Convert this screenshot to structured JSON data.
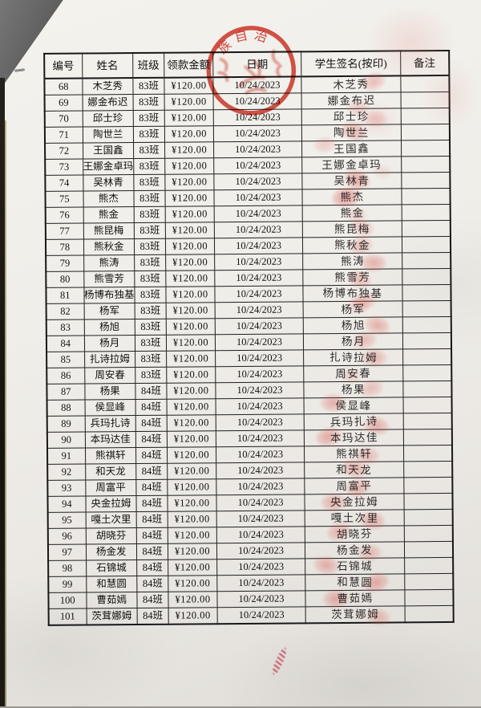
{
  "stamp": {
    "arc_text": "族自治",
    "color": "#c62b1e"
  },
  "decor": {
    "ink_streak": "red-ink-smudge-below-table"
  },
  "table": {
    "headers": [
      "编号",
      "姓名",
      "班级",
      "领款金额",
      "日期",
      "学生签名(按印)",
      "备注"
    ],
    "rows": [
      {
        "no": "68",
        "name": "木芝秀",
        "cls": "83班",
        "amt": "¥120.00",
        "date": "10/24/2023",
        "sig": "木芝秀",
        "note": "",
        "fp": [
          28,
          -4,
          0.5
        ]
      },
      {
        "no": "69",
        "name": "娜金布迟",
        "cls": "83班",
        "amt": "¥120.00",
        "date": "10/24/2023",
        "sig": "娜金布迟",
        "note": "",
        "fp": [
          8,
          8,
          0.35
        ]
      },
      {
        "no": "70",
        "name": "邱士珍",
        "cls": "83班",
        "amt": "¥120.00",
        "date": "10/24/2023",
        "sig": "邱士珍",
        "note": "",
        "fp": [
          30,
          2,
          0.4
        ]
      },
      {
        "no": "71",
        "name": "陶世兰",
        "cls": "83班",
        "amt": "¥120.00",
        "date": "10/24/2023",
        "sig": "陶世兰",
        "note": "",
        "fp": [
          2,
          -2,
          0.6
        ]
      },
      {
        "no": "72",
        "name": "王国鑫",
        "cls": "83班",
        "amt": "¥120.00",
        "date": "10/24/2023",
        "sig": "王国鑫",
        "note": "",
        "fp": [
          -34,
          -6,
          0.35
        ]
      },
      {
        "no": "73",
        "name": "王娜金卓玛",
        "cls": "83班",
        "amt": "¥120.00",
        "date": "10/24/2023",
        "sig": "王娜金卓玛",
        "note": "",
        "fp": [
          38,
          8,
          0.2
        ]
      },
      {
        "no": "74",
        "name": "吴林青",
        "cls": "83班",
        "amt": "¥120.00",
        "date": "10/24/2023",
        "sig": "吴林青",
        "note": "",
        "fp": [
          6,
          -2,
          0.7
        ]
      },
      {
        "no": "75",
        "name": "熊杰",
        "cls": "83班",
        "amt": "¥120.00",
        "date": "10/24/2023",
        "sig": "熊杰",
        "note": "",
        "fp": [
          -8,
          0,
          0.8
        ]
      },
      {
        "no": "76",
        "name": "熊金",
        "cls": "83班",
        "amt": "¥120.00",
        "date": "10/24/2023",
        "sig": "熊金",
        "note": "",
        "fp": [
          4,
          2,
          0.3
        ]
      },
      {
        "no": "77",
        "name": "熊昆梅",
        "cls": "83班",
        "amt": "¥120.00",
        "date": "10/24/2023",
        "sig": "熊昆梅",
        "note": "",
        "fp": [
          12,
          -2,
          0.45
        ]
      },
      {
        "no": "78",
        "name": "熊秋金",
        "cls": "83班",
        "amt": "¥120.00",
        "date": "10/24/2023",
        "sig": "熊秋金",
        "note": "",
        "fp": [
          10,
          0,
          0.5
        ]
      },
      {
        "no": "79",
        "name": "熊涛",
        "cls": "83班",
        "amt": "¥120.00",
        "date": "10/24/2023",
        "sig": "熊涛",
        "note": "",
        "fp": [
          26,
          2,
          0.6
        ]
      },
      {
        "no": "80",
        "name": "熊雪芳",
        "cls": "83班",
        "amt": "¥120.00",
        "date": "10/24/2023",
        "sig": "熊雪芳",
        "note": "",
        "fp": [
          8,
          2,
          0.5
        ]
      },
      {
        "no": "81",
        "name": "杨博布独基",
        "cls": "83班",
        "amt": "¥120.00",
        "date": "10/24/2023",
        "sig": "杨博布独基",
        "note": "",
        "fp": [
          14,
          9,
          0.5
        ]
      },
      {
        "no": "82",
        "name": "杨军",
        "cls": "83班",
        "amt": "¥120.00",
        "date": "10/24/2023",
        "sig": "杨军",
        "note": "",
        "fp": [
          6,
          -5,
          0.35
        ]
      },
      {
        "no": "83",
        "name": "杨旭",
        "cls": "83班",
        "amt": "¥120.00",
        "date": "10/24/2023",
        "sig": "杨旭",
        "note": "",
        "fp": [
          30,
          0,
          0.6
        ]
      },
      {
        "no": "84",
        "name": "杨月",
        "cls": "83班",
        "amt": "¥120.00",
        "date": "10/24/2023",
        "sig": "杨月",
        "note": "",
        "fp": [
          14,
          -2,
          0.5
        ]
      },
      {
        "no": "85",
        "name": "扎诗拉姆",
        "cls": "83班",
        "amt": "¥120.00",
        "date": "10/24/2023",
        "sig": "扎诗拉姆",
        "note": "",
        "fp": [
          26,
          0,
          0.55
        ]
      },
      {
        "no": "86",
        "name": "周安春",
        "cls": "83班",
        "amt": "¥120.00",
        "date": "10/24/2023",
        "sig": "周安春",
        "note": "",
        "fp": [
          -4,
          2,
          0.3
        ]
      },
      {
        "no": "87",
        "name": "杨果",
        "cls": "84班",
        "amt": "¥120.00",
        "date": "10/24/2023",
        "sig": "杨果",
        "note": "",
        "fp": [
          22,
          -2,
          0.45
        ]
      },
      {
        "no": "88",
        "name": "侯显峰",
        "cls": "84班",
        "amt": "¥120.00",
        "date": "10/24/2023",
        "sig": "侯显峰",
        "note": "",
        "fp": [
          -26,
          -4,
          0.6
        ]
      },
      {
        "no": "89",
        "name": "兵玛扎诗",
        "cls": "84班",
        "amt": "¥120.00",
        "date": "10/24/2023",
        "sig": "兵玛扎诗",
        "note": "",
        "fp": [
          28,
          5,
          0.6
        ]
      },
      {
        "no": "90",
        "name": "本玛达佳",
        "cls": "84班",
        "amt": "¥120.00",
        "date": "10/24/2023",
        "sig": "本玛达佳",
        "note": "",
        "fp": [
          -32,
          -2,
          0.65
        ]
      },
      {
        "no": "91",
        "name": "熊祺轩",
        "cls": "84班",
        "amt": "¥120.00",
        "date": "10/24/2023",
        "sig": "熊祺轩",
        "note": "",
        "fp": [
          16,
          2,
          0.5
        ]
      },
      {
        "no": "92",
        "name": "和天龙",
        "cls": "84班",
        "amt": "¥120.00",
        "date": "10/24/2023",
        "sig": "和天龙",
        "note": "",
        "fp": [
          0,
          -2,
          0.6
        ]
      },
      {
        "no": "93",
        "name": "周富平",
        "cls": "84班",
        "amt": "¥120.00",
        "date": "10/24/2023",
        "sig": "周富平",
        "note": "",
        "fp": [
          4,
          2,
          0.55
        ]
      },
      {
        "no": "94",
        "name": "央金拉姆",
        "cls": "84班",
        "amt": "¥120.00",
        "date": "10/24/2023",
        "sig": "央金拉姆",
        "note": "",
        "fp": [
          -26,
          0,
          0.6
        ]
      },
      {
        "no": "95",
        "name": "嘎土次里",
        "cls": "84班",
        "amt": "¥120.00",
        "date": "10/24/2023",
        "sig": "嘎土次里",
        "note": "",
        "fp": [
          22,
          3,
          0.6
        ]
      },
      {
        "no": "96",
        "name": "胡晓芬",
        "cls": "84班",
        "amt": "¥120.00",
        "date": "10/24/2023",
        "sig": "胡晓芬",
        "note": "",
        "fp": [
          -20,
          -4,
          0.55
        ]
      },
      {
        "no": "97",
        "name": "杨金发",
        "cls": "84班",
        "amt": "¥120.00",
        "date": "10/24/2023",
        "sig": "杨金发",
        "note": "",
        "fp": [
          18,
          3,
          0.5
        ]
      },
      {
        "no": "98",
        "name": "石锦城",
        "cls": "84班",
        "amt": "¥120.00",
        "date": "10/24/2023",
        "sig": "石锦城",
        "note": "",
        "fp": [
          -36,
          -2,
          0.6
        ]
      },
      {
        "no": "99",
        "name": "和慧圆",
        "cls": "84班",
        "amt": "¥120.00",
        "date": "10/24/2023",
        "sig": "和慧圆",
        "note": "",
        "fp": [
          26,
          0,
          0.65
        ]
      },
      {
        "no": "100",
        "name": "曹茹嫣",
        "cls": "84班",
        "amt": "¥120.00",
        "date": "10/24/2023",
        "sig": "曹茹嫣",
        "note": "",
        "fp": [
          -24,
          0,
          0.65
        ]
      },
      {
        "no": "101",
        "name": "茨茸娜姆",
        "cls": "84班",
        "amt": "¥120.00",
        "date": "10/24/2023",
        "sig": "茨茸娜姆",
        "note": "",
        "fp": [
          28,
          3,
          0.5
        ]
      }
    ]
  }
}
